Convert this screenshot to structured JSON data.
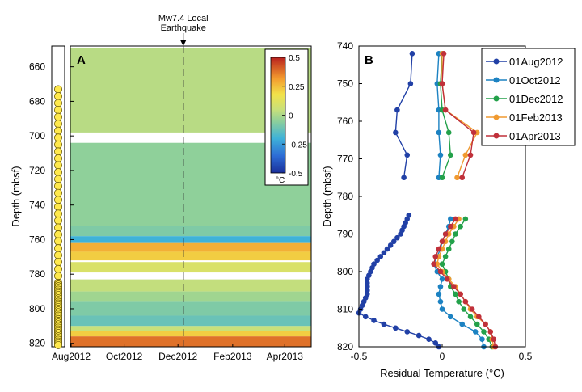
{
  "chart_data": [
    {
      "panel": "A",
      "type": "heatmap",
      "ylabel": "Depth (mbsf)",
      "y_ticks": [
        660,
        680,
        700,
        720,
        740,
        760,
        780,
        800,
        820
      ],
      "ylim": [
        648,
        822
      ],
      "x_ticks": [
        "Aug2012",
        "Oct2012",
        "Dec2012",
        "Feb2013",
        "Apr2013"
      ],
      "xlim": [
        "2012-08-01",
        "2013-05-01"
      ],
      "event_date": "2012-12-07",
      "event_label_line1": "Mw7.4 Local",
      "event_label_line2": "Earthquake",
      "colorbar_ticks": [
        0.5,
        0.25,
        0,
        -0.25,
        -0.5
      ],
      "colorbar_unit": "°C",
      "clim": [
        -0.5,
        0.5
      ],
      "sensor_depths": [
        673,
        677,
        681,
        685,
        689,
        693,
        697,
        701,
        705,
        709,
        713,
        717,
        721,
        725,
        729,
        733,
        737,
        741,
        745,
        749,
        753,
        757,
        761,
        765,
        769,
        773,
        777,
        781,
        785,
        786,
        787,
        788,
        789,
        790,
        791,
        792,
        793,
        794,
        795,
        796,
        797,
        798,
        799,
        800,
        801,
        802,
        803,
        804,
        805,
        806,
        807,
        808,
        809,
        810,
        811,
        812,
        813,
        814,
        815,
        816,
        817,
        818,
        819,
        820,
        821
      ],
      "sensor_color": "#ffe94d",
      "bands": [
        {
          "from": 649,
          "to": 698,
          "value": 0.02
        },
        {
          "from": 704,
          "to": 752,
          "value": -0.05
        },
        {
          "from": 752,
          "to": 758,
          "value": -0.08
        },
        {
          "from": 758,
          "to": 762,
          "value": -0.2
        },
        {
          "from": 762,
          "to": 767,
          "value": 0.28
        },
        {
          "from": 767,
          "to": 772,
          "value": 0.22
        },
        {
          "from": 773,
          "to": 779,
          "value": 0.1
        },
        {
          "from": 783,
          "to": 790,
          "value": 0.04
        },
        {
          "from": 790,
          "to": 796,
          "value": -0.02
        },
        {
          "from": 796,
          "to": 804,
          "value": -0.08
        },
        {
          "from": 804,
          "to": 810,
          "value": -0.12
        },
        {
          "from": 810,
          "to": 813,
          "value": 0.05
        },
        {
          "from": 813,
          "to": 816,
          "value": 0.22
        },
        {
          "from": 816,
          "to": 822,
          "value": 0.38
        }
      ]
    },
    {
      "panel": "B",
      "type": "line",
      "xlabel": "Residual Temperature (°C)",
      "ylabel": "Depth (mbsf)",
      "xlim": [
        -0.5,
        0.5
      ],
      "ylim": [
        740,
        820
      ],
      "x_ticks": [
        -0.5,
        0,
        0.5
      ],
      "y_ticks": [
        740,
        750,
        760,
        770,
        780,
        790,
        800,
        810,
        820
      ],
      "legend_position": "top-right",
      "series": [
        {
          "name": "01Aug2012",
          "color": "#2140a6",
          "segments": [
            {
              "y": [
                742,
                750,
                757,
                763,
                769,
                775
              ],
              "x": [
                -0.18,
                -0.19,
                -0.27,
                -0.28,
                -0.21,
                -0.23
              ]
            },
            {
              "y": [
                785,
                786,
                787,
                788,
                789,
                790,
                791,
                792,
                793,
                794,
                795,
                796,
                797,
                798,
                799,
                800,
                801,
                802,
                803,
                804,
                805,
                806,
                807,
                808,
                809,
                810,
                811,
                812,
                813,
                814,
                815,
                816,
                817,
                818,
                819,
                820
              ],
              "x": [
                -0.2,
                -0.21,
                -0.22,
                -0.23,
                -0.24,
                -0.25,
                -0.27,
                -0.29,
                -0.31,
                -0.33,
                -0.35,
                -0.37,
                -0.39,
                -0.41,
                -0.42,
                -0.43,
                -0.44,
                -0.45,
                -0.45,
                -0.45,
                -0.45,
                -0.45,
                -0.46,
                -0.47,
                -0.48,
                -0.49,
                -0.5,
                -0.46,
                -0.41,
                -0.35,
                -0.28,
                -0.21,
                -0.14,
                -0.08,
                -0.04,
                -0.02
              ]
            }
          ]
        },
        {
          "name": "01Oct2012",
          "color": "#1c82c2",
          "segments": [
            {
              "y": [
                742,
                750,
                757,
                763,
                769,
                775
              ],
              "x": [
                -0.02,
                -0.03,
                -0.02,
                -0.02,
                -0.01,
                -0.02
              ]
            },
            {
              "y": [
                786,
                788,
                790,
                792,
                794,
                796,
                798,
                800,
                802,
                804,
                806,
                808,
                810,
                812,
                814,
                816,
                818,
                820
              ],
              "x": [
                0.05,
                0.04,
                0.02,
                0.0,
                -0.01,
                -0.03,
                -0.05,
                -0.03,
                0.0,
                -0.01,
                -0.02,
                -0.01,
                0.0,
                0.05,
                0.12,
                0.2,
                0.24,
                0.25
              ]
            }
          ]
        },
        {
          "name": "01Dec2012",
          "color": "#23a14a",
          "segments": [
            {
              "y": [
                742,
                750,
                757,
                763,
                769,
                775
              ],
              "x": [
                0.0,
                -0.01,
                0.0,
                0.04,
                0.05,
                0.0
              ]
            },
            {
              "y": [
                786,
                788,
                790,
                792,
                794,
                796,
                798,
                800,
                802,
                804,
                806,
                808,
                810,
                812,
                814,
                816,
                818,
                820
              ],
              "x": [
                0.14,
                0.11,
                0.08,
                0.06,
                0.04,
                0.02,
                0.0,
                0.02,
                0.04,
                0.05,
                0.08,
                0.1,
                0.13,
                0.17,
                0.21,
                0.25,
                0.28,
                0.3
              ]
            }
          ]
        },
        {
          "name": "01Feb2013",
          "color": "#f09a30",
          "segments": [
            {
              "y": [
                742,
                750,
                757,
                763,
                769,
                775
              ],
              "x": [
                0.0,
                0.0,
                0.02,
                0.21,
                0.14,
                0.09
              ]
            },
            {
              "y": [
                786,
                788,
                790,
                792,
                794,
                796,
                798,
                800,
                802,
                804,
                806,
                808,
                810,
                812,
                814,
                816,
                818,
                820
              ],
              "x": [
                0.1,
                0.07,
                0.04,
                0.02,
                0.0,
                -0.02,
                -0.03,
                0.0,
                0.04,
                0.08,
                0.11,
                0.14,
                0.17,
                0.21,
                0.26,
                0.29,
                0.3,
                0.31
              ]
            }
          ]
        },
        {
          "name": "01Apr2013",
          "color": "#c0303a",
          "segments": [
            {
              "y": [
                742,
                750,
                757,
                763,
                769,
                775
              ],
              "x": [
                0.01,
                0.0,
                0.02,
                0.19,
                0.17,
                0.12
              ]
            },
            {
              "y": [
                786,
                788,
                790,
                792,
                794,
                796,
                798,
                800,
                802,
                804,
                806,
                808,
                810,
                812,
                814,
                816,
                818,
                820
              ],
              "x": [
                0.08,
                0.05,
                0.02,
                0.0,
                -0.02,
                -0.04,
                -0.05,
                -0.01,
                0.03,
                0.07,
                0.11,
                0.14,
                0.18,
                0.22,
                0.26,
                0.29,
                0.31,
                0.32
              ]
            }
          ]
        }
      ]
    }
  ]
}
